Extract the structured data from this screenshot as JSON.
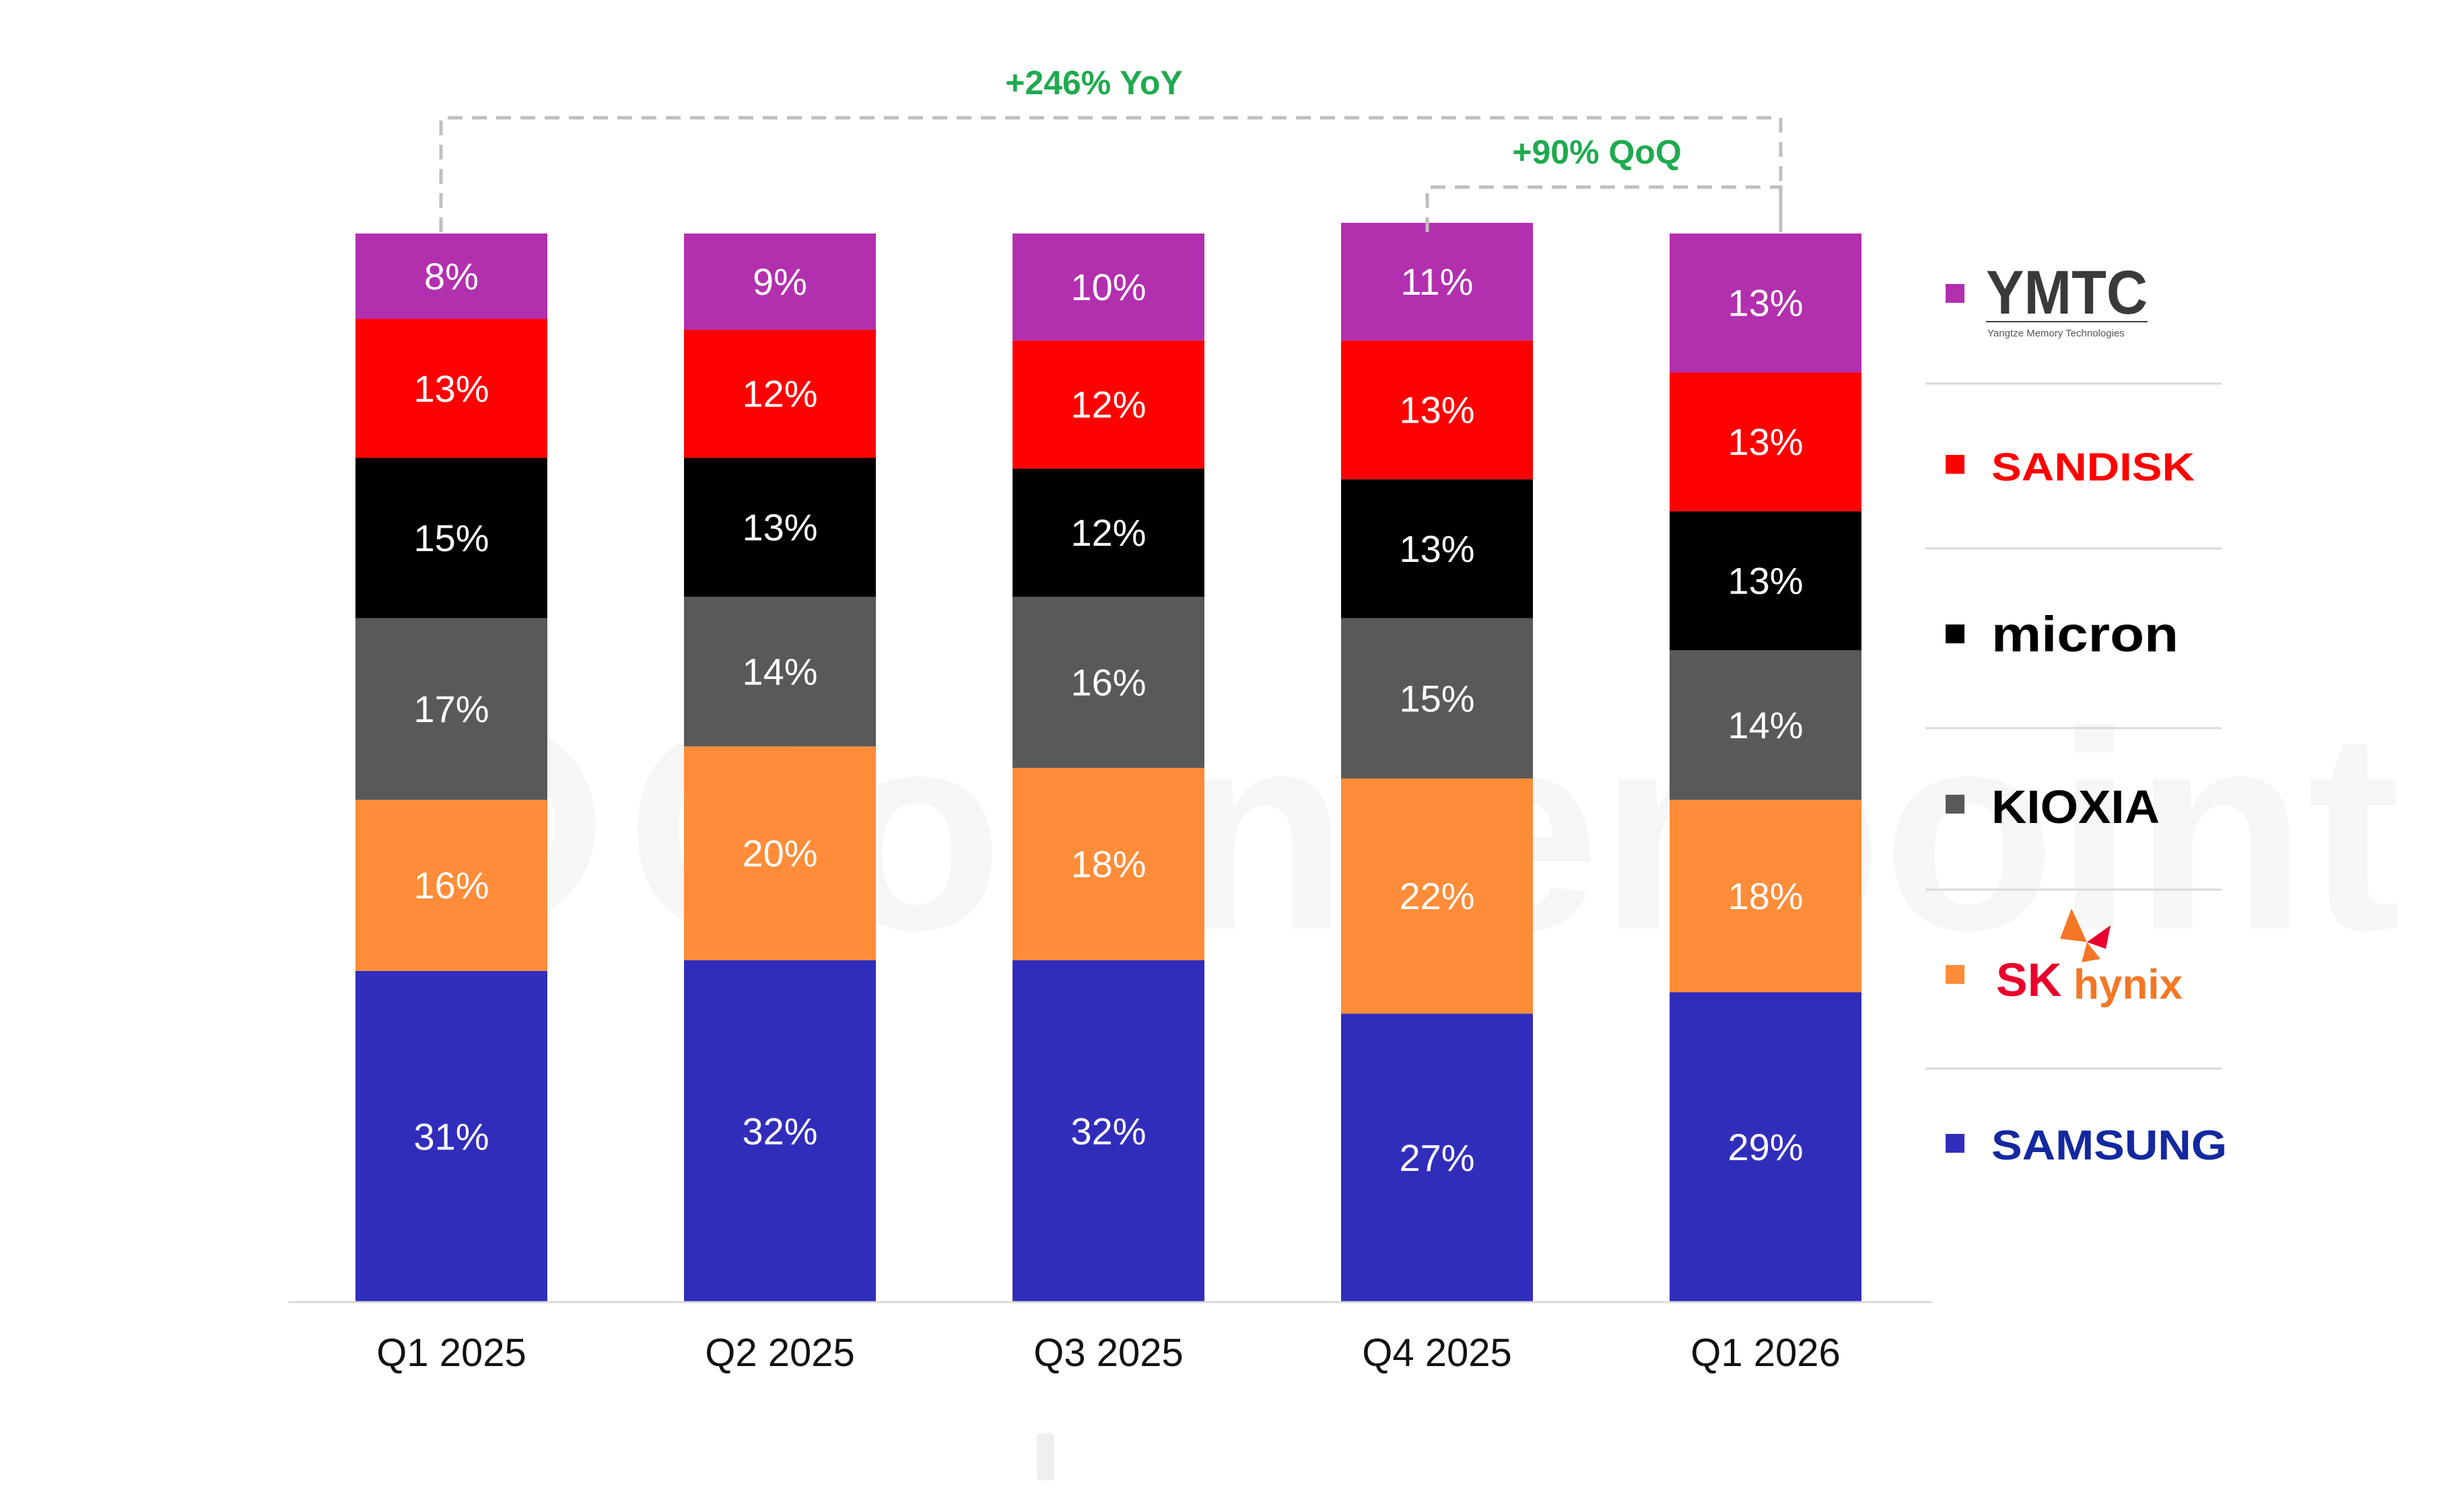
{
  "chart_data": {
    "type": "bar",
    "stacked": true,
    "categories": [
      "Q1 2025",
      "Q2 2025",
      "Q3 2025",
      "Q4 2025",
      "Q1 2026"
    ],
    "series": [
      {
        "name": "SAMSUNG",
        "color": "#312dbb",
        "values": [
          31,
          32,
          32,
          27,
          29
        ],
        "labels": [
          "31%",
          "32%",
          "32%",
          "27%",
          "29%"
        ]
      },
      {
        "name": "SK hynix",
        "color": "#ff8c38",
        "values": [
          16,
          20,
          18,
          22,
          18
        ],
        "labels": [
          "16%",
          "20%",
          "18%",
          "22%",
          "18%"
        ]
      },
      {
        "name": "KIOXIA",
        "color": "#595959",
        "values": [
          17,
          14,
          16,
          15,
          14
        ],
        "labels": [
          "17%",
          "14%",
          "16%",
          "15%",
          "14%"
        ]
      },
      {
        "name": "micron",
        "color": "#000000",
        "values": [
          15,
          13,
          12,
          13,
          13
        ],
        "labels": [
          "15%",
          "13%",
          "12%",
          "13%",
          "13%"
        ]
      },
      {
        "name": "SANDISK",
        "color": "#ff0000",
        "values": [
          13,
          12,
          12,
          13,
          13
        ],
        "labels": [
          "13%",
          "12%",
          "12%",
          "13%",
          "13%"
        ]
      },
      {
        "name": "YMTC",
        "color": "#b22fae",
        "values": [
          8,
          9,
          10,
          11,
          13
        ],
        "labels": [
          "8%",
          "9%",
          "10%",
          "11%",
          "13%"
        ]
      }
    ],
    "legend_position": "right",
    "legend_order": [
      "YMTC",
      "SANDISK",
      "micron",
      "KIOXIA",
      "SK hynix",
      "SAMSUNG"
    ],
    "annotations": [
      {
        "text": "+246% YoY",
        "from": "Q1 2025",
        "to": "Q1 2026"
      },
      {
        "text": "+90% QoQ",
        "from": "Q4 2025",
        "to": "Q1 2026"
      }
    ],
    "ylim": [
      0,
      100
    ],
    "grid": false,
    "xlabel": "",
    "ylabel": "",
    "title": ""
  },
  "legend_logos": {
    "ymtc": {
      "name": "YMTC",
      "sub": "Yangtze Memory Technologies"
    },
    "sandisk": {
      "name": "SANDISK"
    },
    "micron": {
      "name": "micron"
    },
    "kioxia": {
      "name": "KIOXIA"
    },
    "skhynix": {
      "sk": "SK",
      "hynix": "hynix"
    },
    "samsung": {
      "name": "SAMSUNG"
    }
  },
  "watermark": "Counterpoint",
  "colors": {
    "annotation": "#1faa4f",
    "connector": "#bfbfbf",
    "baseline": "#d9d9d9",
    "ymtc_logo": "#3a3a3a",
    "sandisk_logo": "#ff0000",
    "micron_logo": "#000000",
    "kioxia_logo": "#000000",
    "sk_logo": "#ea002c",
    "hynix_logo": "#f47725",
    "samsung_logo": "#1428a0"
  }
}
